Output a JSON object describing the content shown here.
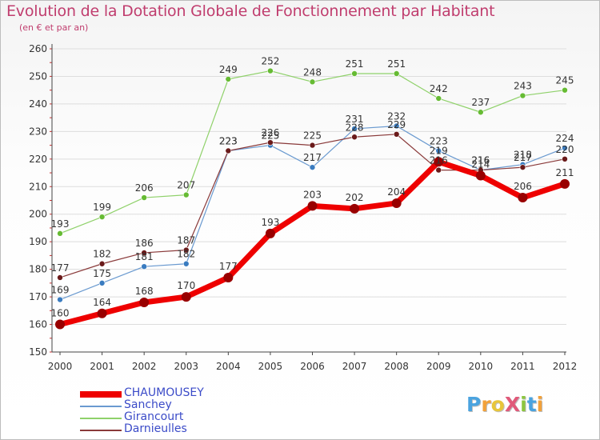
{
  "header": {
    "title": "Evolution de la Dotation Globale de Fonctionnement par Habitant",
    "subtitle": "(en € et par an)"
  },
  "colors": {
    "title": "#c03d6e",
    "legend_text": "#3b4bc8",
    "axis": "#444444",
    "grid": "#dddddd"
  },
  "logo": {
    "text": "ProXiti",
    "letters": [
      {
        "char": "P",
        "color": "#4aa3df"
      },
      {
        "char": "r",
        "color": "#f2a13a"
      },
      {
        "char": "o",
        "color": "#e8c63a"
      },
      {
        "char": "X",
        "color": "#e05a7a"
      },
      {
        "char": "i",
        "color": "#8cc63f"
      },
      {
        "char": "t",
        "color": "#4aa3df"
      },
      {
        "char": "i",
        "color": "#f2a13a"
      }
    ]
  },
  "chart_data": {
    "type": "line",
    "title": "Evolution de la Dotation Globale de Fonctionnement par Habitant",
    "subtitle": "(en € et par an)",
    "xlabel": "",
    "ylabel": "",
    "x": [
      "2000",
      "2001",
      "2002",
      "2003",
      "2004",
      "2005",
      "2006",
      "2007",
      "2008",
      "2009",
      "2010",
      "2011",
      "2012"
    ],
    "ylim": [
      150,
      260
    ],
    "yticks": [
      "150",
      "160",
      "170",
      "180",
      "190",
      "200",
      "210",
      "220",
      "230",
      "240",
      "250",
      "260"
    ],
    "grid": true,
    "legend_position": "bottom-left",
    "series": [
      {
        "name": "CHAUMOUSEY",
        "color": "#ee0000",
        "marker": "#990000",
        "width": 7,
        "markerR": 6,
        "values": [
          160,
          164,
          168,
          170,
          177,
          193,
          203,
          202,
          204,
          219,
          214,
          206,
          211
        ],
        "labels": [
          "160",
          "164",
          "168",
          "170",
          "177",
          "193",
          "203",
          "202",
          "204",
          "219",
          "214",
          "206",
          "211"
        ]
      },
      {
        "name": "Sanchey",
        "color": "#6a9ad0",
        "marker": "#3a7cc0",
        "width": 1.2,
        "markerR": 3.5,
        "values": [
          169,
          175,
          181,
          182,
          223,
          225,
          217,
          231,
          232,
          223,
          216,
          218,
          224
        ],
        "labels": [
          "169",
          "175",
          "181",
          "182",
          "223",
          "225",
          "217",
          "231",
          "232",
          "223",
          "216",
          "218",
          "224"
        ]
      },
      {
        "name": "Girancourt",
        "color": "#8fd16a",
        "marker": "#66bb33",
        "width": 1.2,
        "markerR": 3.5,
        "values": [
          193,
          199,
          206,
          207,
          249,
          252,
          248,
          251,
          251,
          242,
          237,
          243,
          245
        ],
        "labels": [
          "193",
          "199",
          "206",
          "207",
          "249",
          "252",
          "248",
          "251",
          "251",
          "242",
          "237",
          "243",
          "245"
        ]
      },
      {
        "name": "Darnieulles",
        "color": "#8a3a3a",
        "marker": "#6a1a1a",
        "width": 1.2,
        "markerR": 3.5,
        "values": [
          177,
          182,
          186,
          187,
          223,
          226,
          225,
          228,
          229,
          216,
          216,
          217,
          220
        ],
        "labels": [
          "177",
          "182",
          "186",
          "187",
          "223",
          "226",
          "225",
          "228",
          "229",
          "216",
          "216",
          "217",
          "220"
        ]
      }
    ]
  }
}
